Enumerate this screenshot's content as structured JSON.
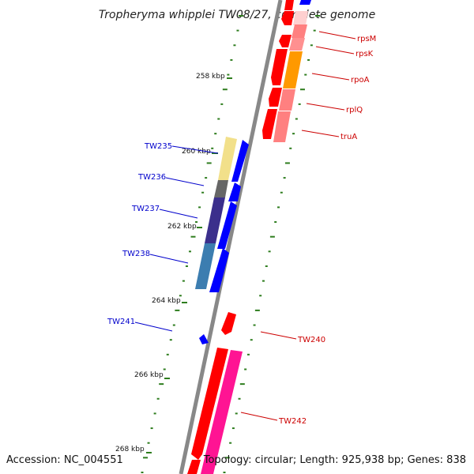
{
  "title": "Tropheryma whipplei TW08/27, complete genome",
  "footer": {
    "accession": "Accession: NC_004551",
    "topology": "Topology: circular; Length: 925,938 bp; Genes: 838"
  },
  "scale_labels": [
    "258 kbp",
    "260 kbp",
    "262 kbp",
    "264 kbp",
    "266 kbp",
    "268 kbp"
  ],
  "gene_labels": {
    "left": [
      "TW235",
      "TW236",
      "TW237",
      "TW238",
      "TW241"
    ],
    "right": [
      "rpsM",
      "rpsK",
      "rpoA",
      "rplQ",
      "truA",
      "TW240",
      "TW242"
    ]
  },
  "colors": {
    "forward_gene": "#0000ff",
    "reverse_gene": "#ff0000",
    "reverse_light": "#ff8080",
    "orange": "#ff9900",
    "yellow": "#f2e08a",
    "gray": "#666666",
    "indigo": "#3b2f8c",
    "steel": "#3c7db0",
    "magenta": "#ff1493",
    "backbone": "#888888",
    "tick": "#2e7d1e"
  }
}
